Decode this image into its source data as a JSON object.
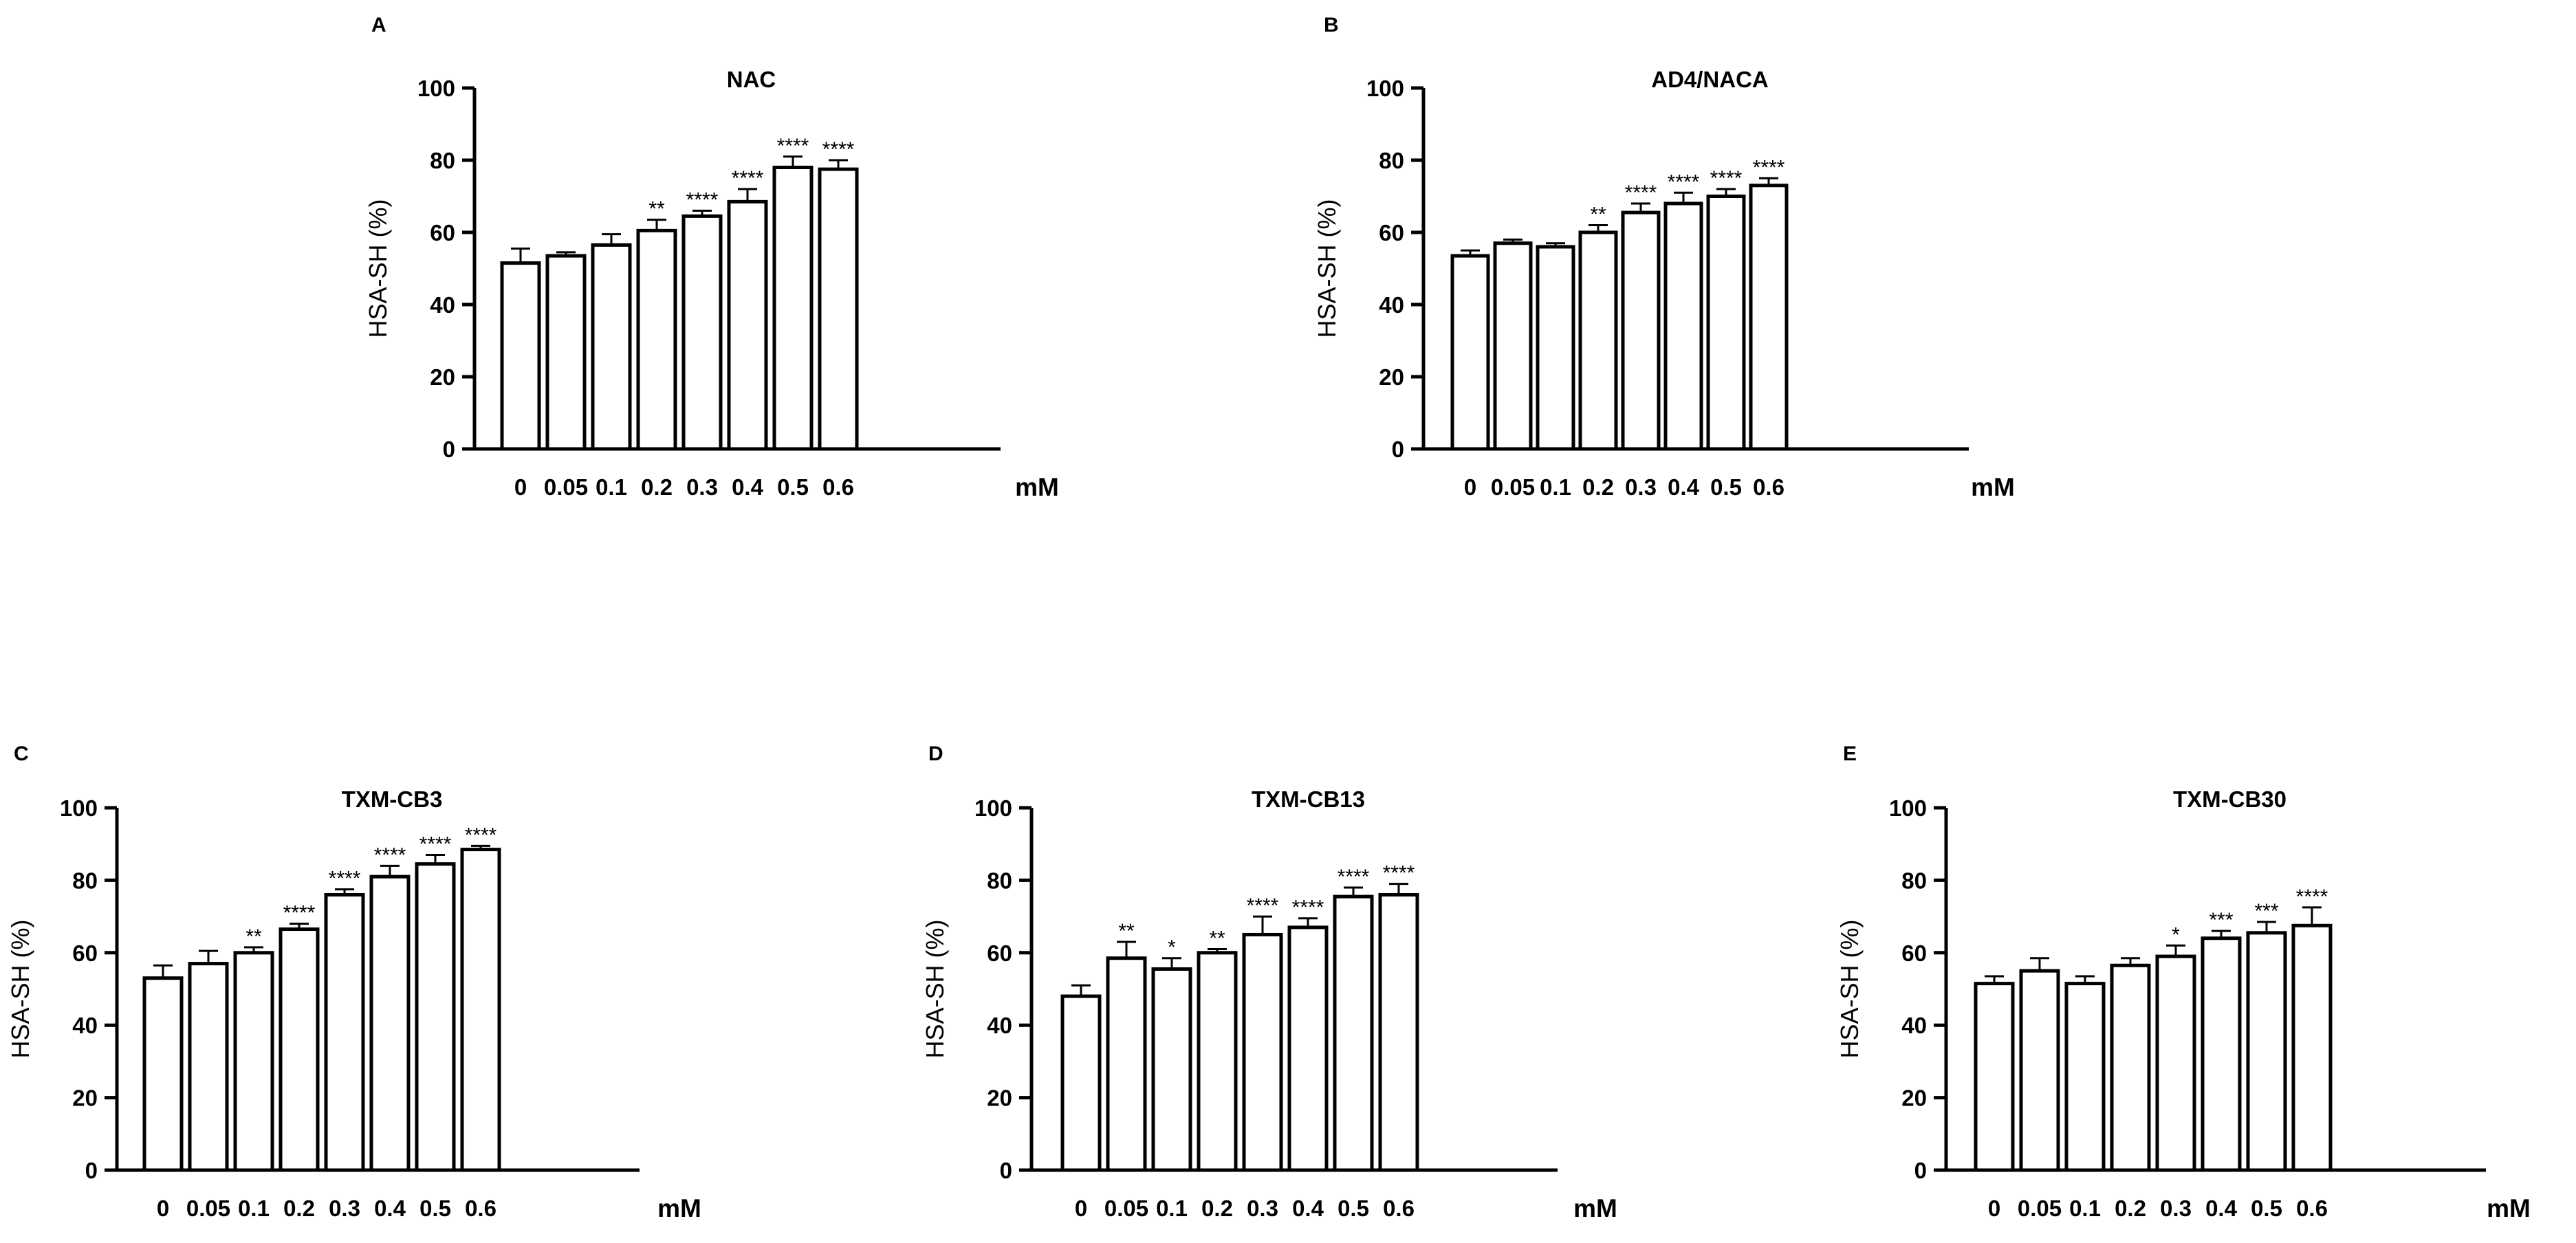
{
  "figure": {
    "background": "#ffffff",
    "ink": "#000000"
  },
  "chart_data": [
    {
      "panel_label": "A",
      "type": "bar",
      "title": "NAC",
      "xlabel": "mM",
      "ylabel": "HSA-SH (%)",
      "ylim": [
        0,
        100
      ],
      "yticks": [
        "0",
        "20",
        "40",
        "60",
        "80",
        "100"
      ],
      "categories": [
        "0",
        "0.05",
        "0.1",
        "0.2",
        "0.3",
        "0.4",
        "0.5",
        "0.6"
      ],
      "values": [
        51.5,
        53.5,
        56.5,
        60.5,
        64.5,
        68.5,
        78,
        77.5
      ],
      "errors": [
        4,
        1,
        3,
        3,
        1.5,
        3.5,
        3,
        2.5
      ],
      "significance": [
        "",
        "",
        "",
        "**",
        "****",
        "****",
        "****",
        "****"
      ]
    },
    {
      "panel_label": "B",
      "type": "bar",
      "title": "AD4/NACA",
      "xlabel": "mM",
      "ylabel": "HSA-SH (%)",
      "ylim": [
        0,
        100
      ],
      "yticks": [
        "0",
        "20",
        "40",
        "60",
        "80",
        "100"
      ],
      "categories": [
        "0",
        "0.05",
        "0.1",
        "0.2",
        "0.3",
        "0.4",
        "0.5",
        "0.6"
      ],
      "values": [
        53.5,
        57,
        56,
        60,
        65.5,
        68,
        70,
        73
      ],
      "errors": [
        1.5,
        1,
        1,
        2,
        2.5,
        3,
        2,
        2
      ],
      "significance": [
        "",
        "",
        "",
        "**",
        "****",
        "****",
        "****",
        "****"
      ]
    },
    {
      "panel_label": "C",
      "type": "bar",
      "title": "TXM-CB3",
      "xlabel": "mM",
      "ylabel": "HSA-SH (%)",
      "ylim": [
        0,
        100
      ],
      "yticks": [
        "0",
        "20",
        "40",
        "60",
        "80",
        "100"
      ],
      "categories": [
        "0",
        "0.05",
        "0.1",
        "0.2",
        "0.3",
        "0.4",
        "0.5",
        "0.6"
      ],
      "values": [
        53,
        57,
        60,
        66.5,
        76,
        81,
        84.5,
        88.5
      ],
      "errors": [
        3.5,
        3.5,
        1.5,
        1.5,
        1.5,
        3,
        2.5,
        1
      ],
      "significance": [
        "",
        "",
        "**",
        "****",
        "****",
        "****",
        "****",
        "****"
      ]
    },
    {
      "panel_label": "D",
      "type": "bar",
      "title": "TXM-CB13",
      "xlabel": "mM",
      "ylabel": "HSA-SH (%)",
      "ylim": [
        0,
        100
      ],
      "yticks": [
        "0",
        "20",
        "40",
        "60",
        "80",
        "100"
      ],
      "categories": [
        "0",
        "0.05",
        "0.1",
        "0.2",
        "0.3",
        "0.4",
        "0.5",
        "0.6"
      ],
      "values": [
        48,
        58.5,
        55.5,
        60,
        65,
        67,
        75.5,
        76
      ],
      "errors": [
        3,
        4.5,
        3,
        1,
        5,
        2.5,
        2.5,
        3
      ],
      "significance": [
        "",
        "**",
        "*",
        "**",
        "****",
        "****",
        "****",
        "****"
      ]
    },
    {
      "panel_label": "E",
      "type": "bar",
      "title": "TXM-CB30",
      "xlabel": "mM",
      "ylabel": "HSA-SH (%)",
      "ylim": [
        0,
        100
      ],
      "yticks": [
        "0",
        "20",
        "40",
        "60",
        "80",
        "100"
      ],
      "categories": [
        "0",
        "0.05",
        "0.1",
        "0.2",
        "0.3",
        "0.4",
        "0.5",
        "0.6"
      ],
      "values": [
        51.5,
        55,
        51.5,
        56.5,
        59,
        64,
        65.5,
        67.5
      ],
      "errors": [
        2,
        3.5,
        2,
        2,
        3,
        2,
        3,
        5
      ],
      "significance": [
        "",
        "",
        "",
        "",
        "*",
        "***",
        "***",
        "****"
      ]
    }
  ]
}
